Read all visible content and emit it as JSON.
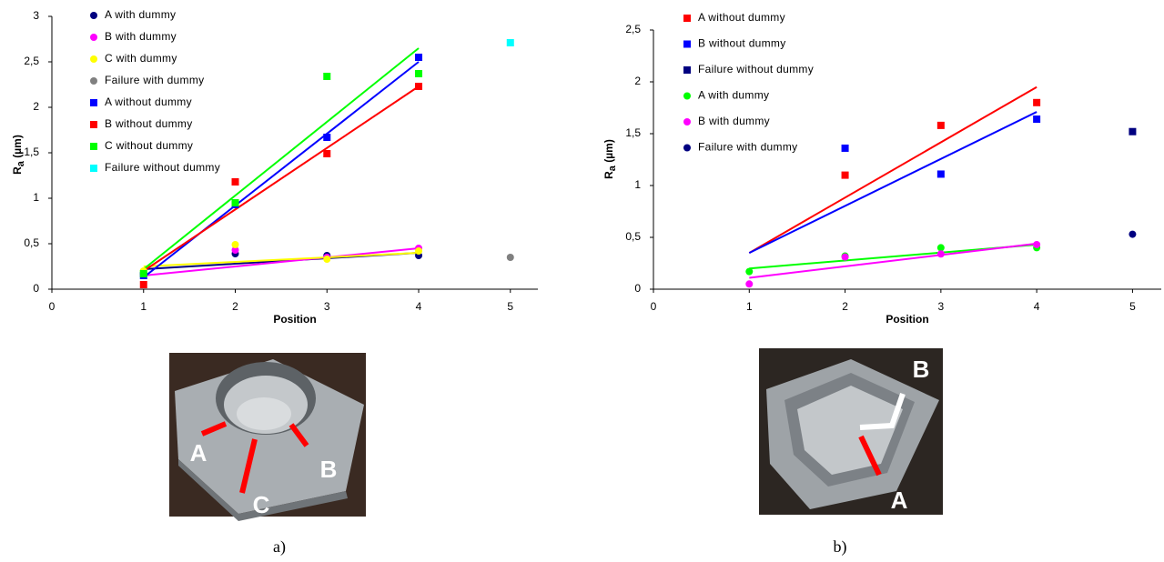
{
  "chart_data": [
    {
      "type": "scatter",
      "xlabel": "Position",
      "ylabel_main": "R",
      "ylabel_sub": "a",
      "ylabel_unit": " (µm)",
      "xlim": [
        0,
        5.3
      ],
      "xticks": [
        0,
        1,
        2,
        3,
        4,
        5
      ],
      "ylim": [
        0,
        3
      ],
      "yticks": [
        0,
        {
          "value": 0.5,
          "label": "0,5"
        },
        1,
        {
          "value": 1.5,
          "label": "1,5"
        },
        2,
        {
          "value": 2.5,
          "label": "2,5"
        },
        3
      ],
      "series": [
        {
          "name": "A with dummy",
          "color": "#000080",
          "marker": "circle",
          "x": [
            1,
            2,
            3,
            4
          ],
          "values": [
            0.17,
            0.39,
            0.37,
            0.37
          ],
          "trend_x": [
            1,
            4
          ],
          "trend_y": [
            0.22,
            0.4
          ]
        },
        {
          "name": "B with dummy",
          "color": "#ff00ff",
          "marker": "circle",
          "x": [
            1,
            2,
            3,
            4
          ],
          "values": [
            0.15,
            0.43,
            0.35,
            0.45
          ],
          "trend_x": [
            1,
            4
          ],
          "trend_y": [
            0.15,
            0.45
          ]
        },
        {
          "name": "C with dummy",
          "color": "#ffff00",
          "marker": "circle",
          "x": [
            1,
            2,
            3,
            4
          ],
          "values": [
            0.2,
            0.49,
            0.33,
            0.42
          ],
          "trend_x": [
            1,
            4
          ],
          "trend_y": [
            0.25,
            0.4
          ]
        },
        {
          "name": "Failure with dummy",
          "color": "#808080",
          "marker": "circle",
          "x": [
            5
          ],
          "values": [
            0.35
          ]
        },
        {
          "name": "A without dummy",
          "color": "#0000ff",
          "marker": "square",
          "x": [
            1,
            2,
            3,
            4
          ],
          "values": [
            0.15,
            0.93,
            1.67,
            2.55
          ],
          "trend_x": [
            1,
            4
          ],
          "trend_y": [
            0.13,
            2.5
          ]
        },
        {
          "name": "B without dummy",
          "color": "#ff0000",
          "marker": "square",
          "x": [
            1,
            2,
            3,
            4
          ],
          "values": [
            0.05,
            1.18,
            1.49,
            2.23
          ],
          "trend_x": [
            1,
            4
          ],
          "trend_y": [
            0.2,
            2.23
          ]
        },
        {
          "name": "C without dummy",
          "color": "#00ff00",
          "marker": "square",
          "x": [
            1,
            2,
            3,
            4
          ],
          "values": [
            0.17,
            0.95,
            2.34,
            2.37
          ],
          "trend_x": [
            1,
            4
          ],
          "trend_y": [
            0.22,
            2.65
          ]
        },
        {
          "name": "Failure without dummy",
          "color": "#00ffff",
          "marker": "square",
          "x": [
            5
          ],
          "values": [
            2.71
          ]
        }
      ]
    },
    {
      "type": "scatter",
      "xlabel": "Position",
      "ylabel_main": "R",
      "ylabel_sub": "a",
      "ylabel_unit": " (µm)",
      "xlim": [
        0,
        5.3
      ],
      "xticks": [
        0,
        1,
        2,
        3,
        4,
        5
      ],
      "ylim": [
        0,
        2.5
      ],
      "yticks": [
        0,
        {
          "value": 0.5,
          "label": "0,5"
        },
        1,
        {
          "value": 1.5,
          "label": "1,5"
        },
        2,
        {
          "value": 2.5,
          "label": "2,5"
        }
      ],
      "series": [
        {
          "name": "A without dummy",
          "color": "#ff0000",
          "marker": "square",
          "x": [
            2,
            3,
            4
          ],
          "values": [
            1.1,
            1.58,
            1.8
          ],
          "trend_x": [
            1,
            4
          ],
          "trend_y": [
            0.35,
            1.95
          ]
        },
        {
          "name": "B without dummy",
          "color": "#0000ff",
          "marker": "square",
          "x": [
            2,
            3,
            4
          ],
          "values": [
            1.36,
            1.11,
            1.64
          ],
          "trend_x": [
            1,
            4
          ],
          "trend_y": [
            0.35,
            1.71
          ]
        },
        {
          "name": "Failure without dummy",
          "color": "#000080",
          "marker": "square",
          "x": [
            5
          ],
          "values": [
            1.52
          ]
        },
        {
          "name": "A with dummy",
          "color": "#00ff00",
          "marker": "circle",
          "x": [
            1,
            2,
            3,
            4
          ],
          "values": [
            0.17,
            0.32,
            0.4,
            0.4
          ],
          "trend_x": [
            1,
            4
          ],
          "trend_y": [
            0.2,
            0.43
          ]
        },
        {
          "name": "B with dummy",
          "color": "#ff00ff",
          "marker": "circle",
          "x": [
            1,
            2,
            3,
            4
          ],
          "values": [
            0.05,
            0.31,
            0.34,
            0.43
          ],
          "trend_x": [
            1,
            4
          ],
          "trend_y": [
            0.11,
            0.44
          ]
        },
        {
          "name": "Failure with dummy",
          "color": "#000080",
          "marker": "circle",
          "x": [
            5
          ],
          "values": [
            0.53
          ]
        }
      ]
    }
  ],
  "figures": [
    {
      "caption": "a)",
      "photo_labels": [
        "A",
        "C",
        "B"
      ]
    },
    {
      "caption": "b)",
      "photo_labels": [
        "B",
        "A"
      ]
    }
  ]
}
